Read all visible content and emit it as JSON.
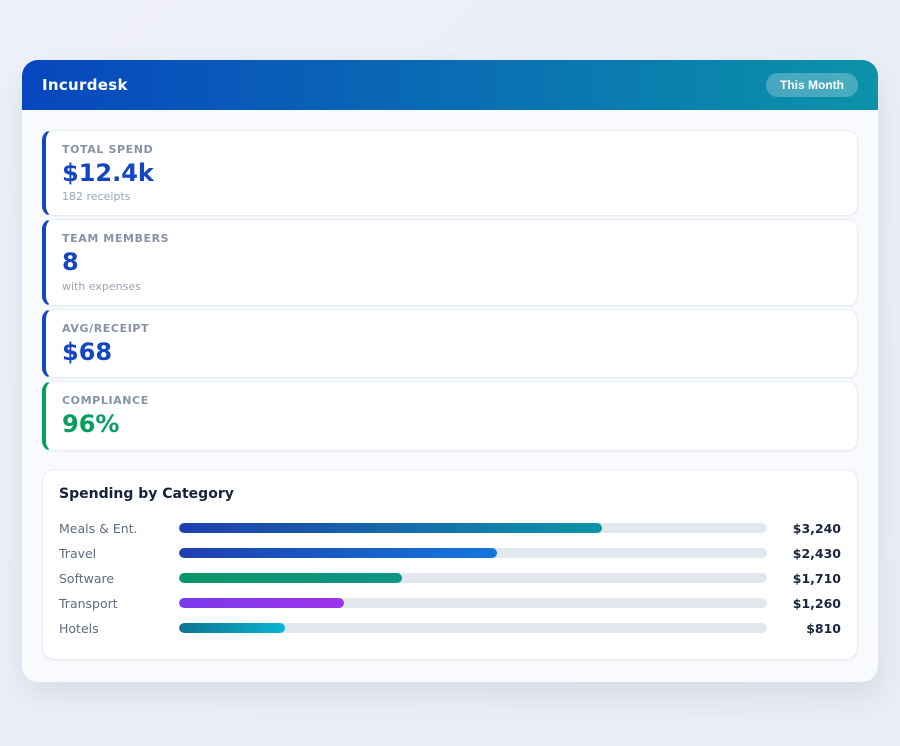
{
  "header": {
    "title": "Incurdesk",
    "badge": "This Month",
    "gradient": [
      "#0846bf",
      "#0b93a9"
    ]
  },
  "stats": [
    {
      "label": "TOTAL SPEND",
      "value": "$12.4k",
      "subtext": "182 receipts",
      "accent": "#1446c4",
      "value_color": "#1446c4"
    },
    {
      "label": "TEAM MEMBERS",
      "value": "8",
      "subtext": "with expenses",
      "accent": "#1446c4",
      "value_color": "#1446c4"
    },
    {
      "label": "AVG/RECEIPT",
      "value": "$68",
      "subtext": "",
      "accent": "#1446c4",
      "value_color": "#1446c4"
    },
    {
      "label": "COMPLIANCE",
      "value": "96%",
      "subtext": "",
      "accent": "#089e61",
      "value_color": "#089e61"
    }
  ],
  "chart_data": {
    "type": "bar",
    "orientation": "horizontal",
    "title": "Spending by Category",
    "categories": [
      "Meals & Ent.",
      "Travel",
      "Software",
      "Transport",
      "Hotels"
    ],
    "values": [
      3240,
      2430,
      1710,
      1260,
      810
    ],
    "value_labels": [
      "$3,240",
      "$2,430",
      "$1,710",
      "$1,260",
      "$810"
    ],
    "axis_max": 4500,
    "track_color": "#e3e8ef",
    "bar_colors": [
      [
        "#1e3fae",
        "#0d93a8"
      ],
      [
        "#1e3fae",
        "#1477dd"
      ],
      [
        "#059669",
        "#0d9488"
      ],
      [
        "#7c3aed",
        "#9d33ea"
      ],
      [
        "#0e7490",
        "#06b6d4"
      ]
    ]
  }
}
